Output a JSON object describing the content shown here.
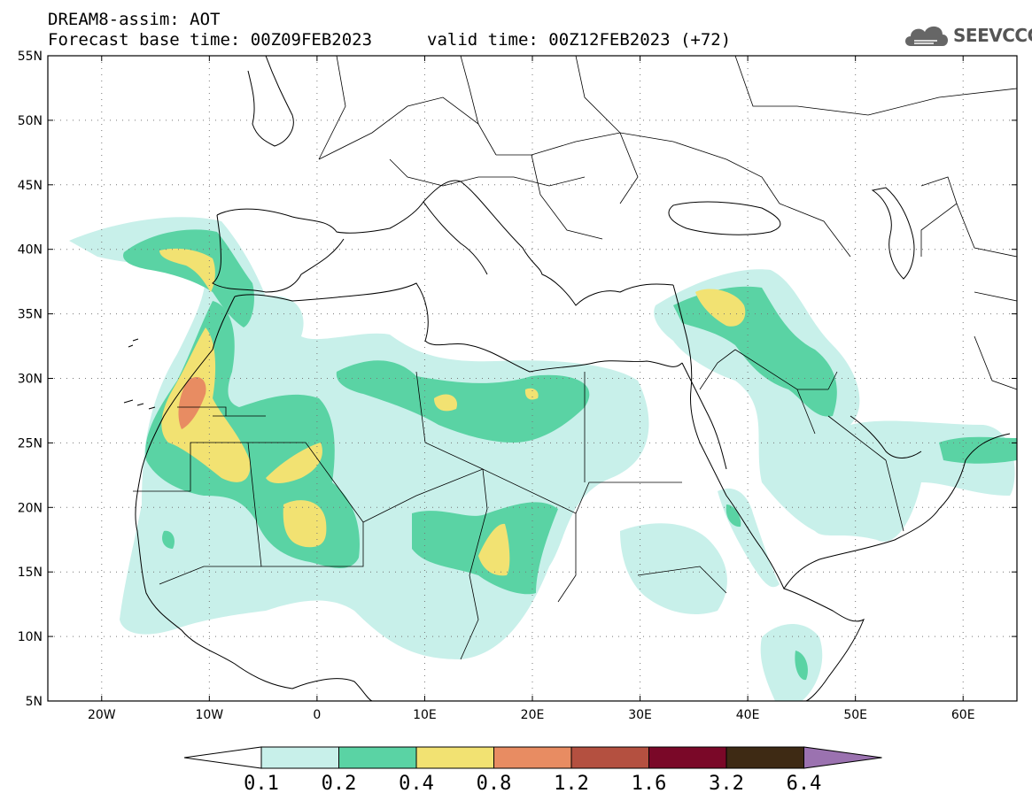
{
  "header": {
    "model_title": "DREAM8-assim: AOT",
    "base_time": "Forecast base time: 00Z09FEB2023",
    "valid_time": "valid time: 00Z12FEB2023 (+72)"
  },
  "logo": {
    "text": "SEEVCCC",
    "icon": "cloud-icon"
  },
  "axes": {
    "lon_min": -25,
    "lon_max": 65,
    "lat_min": 5,
    "lat_max": 55,
    "x_ticks": [
      {
        "lon": -20,
        "label": "20W"
      },
      {
        "lon": -10,
        "label": "10W"
      },
      {
        "lon": 0,
        "label": "0"
      },
      {
        "lon": 10,
        "label": "10E"
      },
      {
        "lon": 20,
        "label": "20E"
      },
      {
        "lon": 30,
        "label": "30E"
      },
      {
        "lon": 40,
        "label": "40E"
      },
      {
        "lon": 50,
        "label": "50E"
      },
      {
        "lon": 60,
        "label": "60E"
      }
    ],
    "y_ticks": [
      {
        "lat": 55,
        "label": "55N"
      },
      {
        "lat": 50,
        "label": "50N"
      },
      {
        "lat": 45,
        "label": "45N"
      },
      {
        "lat": 40,
        "label": "40N"
      },
      {
        "lat": 35,
        "label": "35N"
      },
      {
        "lat": 30,
        "label": "30N"
      },
      {
        "lat": 25,
        "label": "25N"
      },
      {
        "lat": 20,
        "label": "20N"
      },
      {
        "lat": 15,
        "label": "15N"
      },
      {
        "lat": 10,
        "label": "10N"
      },
      {
        "lat": 5,
        "label": "5N"
      }
    ],
    "grid": "dotted"
  },
  "colorbar": {
    "labels": [
      "0.1",
      "0.2",
      "0.4",
      "0.8",
      "1.2",
      "1.6",
      "3.2",
      "6.4"
    ],
    "colors": [
      "#c8f0ea",
      "#5ad3a4",
      "#f2e272",
      "#e88c62",
      "#b45040",
      "#7a0828",
      "#3e2a14"
    ],
    "low_color": "#ffffff",
    "high_color": "#9b72b0"
  }
}
